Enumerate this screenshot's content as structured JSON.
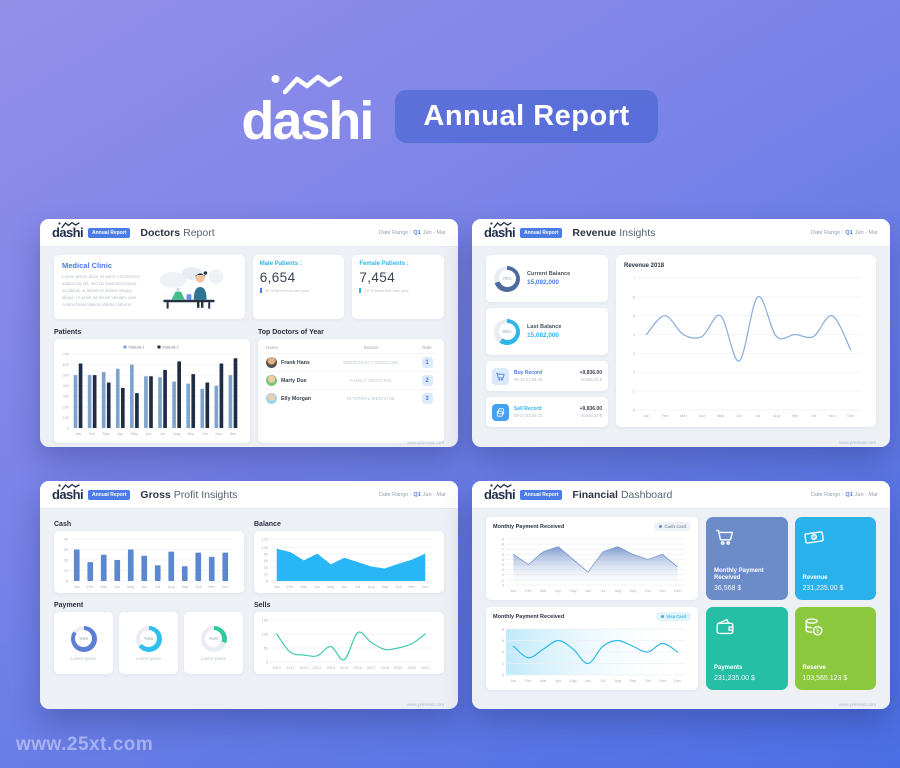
{
  "theme": {
    "accent": "#4a7be6",
    "cyan": "#2fb5ea",
    "navy": "#232f4e",
    "steel": "#6b8cc9",
    "teal": "#25bfa5",
    "green": "#8bc83e"
  },
  "page": {
    "watermark": "www.25xt.com"
  },
  "header": {
    "logo": "dashi",
    "banner": "Annual Report"
  },
  "common": {
    "brand": "dashi",
    "badge": "Annual Report",
    "date_label": "Date Range :",
    "date_q": "Q1",
    "date_period": "Jan - Mar",
    "footer": "www.premast.com"
  },
  "doctors": {
    "title_bold": "Doctors",
    "title_light": "Report",
    "clinic_title": "Medical Clinic",
    "clinic_text": "Lorem ipsum dolor sit amet, consectetur adipiscing elit, sed do eiusmod tempor incididunt ut labore et dolore magna aliqua. Ut enim ad minim veniam, quis nostrud exercitation ullamco laboris.",
    "male_label": "Male Patients :",
    "male_value": "6,654",
    "male_note": "20 % More than last year",
    "female_label": "Female Patients :",
    "female_value": "7,454",
    "female_note": "15 % More than last year",
    "patients_label": "Patients",
    "top_doctors_label": "Top Doctors of Year",
    "headers": {
      "name": "Name",
      "section": "Section",
      "rate": "Rate"
    },
    "rows": [
      {
        "name": "Frank Hans",
        "section": "EMERGENCY MEDICINE",
        "rate": "1"
      },
      {
        "name": "Marty Due",
        "section": "FAMILY MEDICINE",
        "rate": "2"
      },
      {
        "name": "Elly Morgan",
        "section": "INTERNAL MEDICINE",
        "rate": "3"
      }
    ]
  },
  "revenue": {
    "title_bold": "Revenue",
    "title_light": "Insights",
    "current": {
      "percent": 70,
      "percent_label": "70%",
      "label": "Current Balance",
      "value": "15,082,000",
      "color": "#4d6b9d"
    },
    "last": {
      "percent": 60,
      "percent_label": "60%",
      "label": "Last Balance",
      "value": "15,082,000",
      "color": "#2fb5ea"
    },
    "buy": {
      "label": "Buy Record",
      "time": "09-23 03:55:25",
      "amount": "+9,836.00",
      "total": "50568.23 $",
      "icon_bg": "#dce9fb",
      "icon_fg": "#4a7be6"
    },
    "sell": {
      "label": "Sell Record",
      "time": "09-23 03:55:25",
      "amount": "+9,836.00",
      "total": "50568.23 $",
      "icon_bg": "#47a0ef",
      "icon_fg": "#ffffff"
    }
  },
  "gross": {
    "title_bold": "Gross",
    "title_light": "Profit Insights",
    "cash_label": "Cash",
    "balance_label": "Balance",
    "payment_label": "Payment",
    "sells_label": "Sells",
    "donuts": [
      {
        "percent": 85,
        "label": "%85",
        "caption": "Lorem Ipsum",
        "color": "#5b7fd4"
      },
      {
        "percent": 65,
        "label": "%65",
        "caption": "Lorem Ipsum",
        "color": "#2fc0ef"
      },
      {
        "percent": 30,
        "label": "%30",
        "caption": "Lorem Ipsum",
        "color": "#2ecc9a"
      }
    ]
  },
  "financial": {
    "title_bold": "Financial",
    "title_light": "Dashboard",
    "chart1_title": "Monthly Payment Received",
    "chart1_badge": "Cash Card",
    "chart2_title": "Monthly Payment Received",
    "chart2_badge": "Visa Card",
    "tiles": [
      {
        "label": "Monthly Payment Received",
        "value": "36,568 $",
        "color": "#6b8cc9"
      },
      {
        "label": "Revenue",
        "value": "231,235.00 $",
        "color": "#29b1ec"
      },
      {
        "label": "Payments",
        "value": "231,235.00 $",
        "color": "#25bfa5"
      },
      {
        "label": "Reserve",
        "value": "103,565.123 $",
        "color": "#8bc83e"
      }
    ]
  },
  "chart_data": {
    "patients": {
      "type": "grouped-bar",
      "title": "Patients",
      "categories": [
        "Jan",
        "Feb",
        "Mar",
        "Apr",
        "May",
        "Jun",
        "Jul",
        "Aug",
        "Sep",
        "Oct",
        "Nov",
        "Dec"
      ],
      "series": [
        {
          "name": "Patients 1",
          "color": "#7ea3cf",
          "values": [
            500,
            500,
            530,
            560,
            600,
            490,
            480,
            440,
            420,
            370,
            400,
            500
          ]
        },
        {
          "name": "Patients 2",
          "color": "#1e2c44",
          "values": [
            610,
            500,
            430,
            380,
            330,
            490,
            550,
            630,
            510,
            430,
            610,
            660
          ]
        }
      ],
      "ylim": [
        0,
        700
      ],
      "yticks": [
        0,
        100,
        200,
        300,
        400,
        500,
        600,
        700
      ],
      "legend": true
    },
    "revenue2018": {
      "type": "line",
      "title": "Revenue 2018",
      "smooth": true,
      "categories": [
        "Jan",
        "Feb",
        "Mar",
        "Apr",
        "May",
        "Jun",
        "Jul",
        "Aug",
        "Sep",
        "Oct",
        "Nov",
        "Dec"
      ],
      "values": [
        4,
        5,
        4,
        3.9,
        5,
        2.6,
        6,
        3.9,
        4,
        3.9,
        5,
        3.2
      ],
      "color": "#85a9d8",
      "ylim": [
        0,
        7
      ],
      "yticks": [
        0,
        1,
        2,
        3,
        4,
        5,
        6,
        7
      ]
    },
    "cash": {
      "type": "bar",
      "title": "Cash",
      "categories": [
        "Jan",
        "Feb",
        "Mar",
        "Apr",
        "May",
        "Jun",
        "Jul",
        "Aug",
        "Sep",
        "Oct",
        "Nov",
        "Dec"
      ],
      "values": [
        30,
        18,
        25,
        20,
        30,
        24,
        15,
        28,
        14,
        27,
        23,
        27
      ],
      "color": "#5b87ce",
      "ylim": [
        0,
        40
      ],
      "yticks": [
        0,
        10,
        20,
        30,
        40
      ]
    },
    "balance": {
      "type": "area",
      "title": "Balance",
      "fill": "solid",
      "categories": [
        "Jan",
        "Feb",
        "Mar",
        "Apr",
        "May",
        "Jun",
        "Jul",
        "Aug",
        "Sep",
        "Oct",
        "Nov",
        "Dec"
      ],
      "values": [
        95,
        85,
        60,
        80,
        48,
        68,
        55,
        42,
        36,
        50,
        62,
        80
      ],
      "color": "#29b6f6",
      "ylim": [
        0,
        125
      ],
      "yticks": [
        0,
        20,
        40,
        60,
        80,
        100,
        125
      ]
    },
    "sells": {
      "type": "line",
      "title": "Sells",
      "smooth": true,
      "categories": [
        "2010",
        "2011",
        "2012",
        "2013",
        "2014",
        "2015",
        "2016",
        "2017",
        "2018",
        "2019",
        "2020",
        "2021"
      ],
      "values": [
        100,
        35,
        25,
        22,
        55,
        8,
        105,
        70,
        45,
        50,
        65,
        100
      ],
      "color": "#3ec8ac",
      "ylim": [
        0,
        150
      ],
      "yticks": [
        0,
        50,
        100,
        150
      ]
    },
    "monthly_cash": {
      "type": "area",
      "title": "Monthly Payment Received",
      "fill": "gradient",
      "categories": [
        "Jan",
        "Feb",
        "Mar",
        "Apr",
        "May",
        "Jun",
        "Jul",
        "Aug",
        "Sep",
        "Oct",
        "Nov",
        "Dec"
      ],
      "values": [
        6,
        4,
        6.5,
        7.5,
        5,
        2.5,
        6.5,
        7.5,
        6,
        5,
        6,
        3.5
      ],
      "color": "#7695cc",
      "ylim": [
        0,
        9
      ],
      "yticks": [
        0,
        1,
        2,
        3,
        4,
        5,
        6,
        7,
        8,
        9
      ]
    },
    "monthly_visa": {
      "type": "line",
      "title": "Monthly Payment Received",
      "smooth": true,
      "bg_gradient": true,
      "categories": [
        "Jan",
        "Feb",
        "Mar",
        "Apr",
        "May",
        "Jun",
        "Jul",
        "Aug",
        "Sep",
        "Oct",
        "Nov",
        "Dec"
      ],
      "values": [
        5,
        3,
        4.5,
        6,
        4.5,
        2,
        5,
        6,
        5,
        4,
        5.5,
        4
      ],
      "color": "#2bb8e8",
      "ylim": [
        0,
        8
      ],
      "yticks": [
        0,
        2,
        4,
        6,
        8
      ]
    }
  }
}
